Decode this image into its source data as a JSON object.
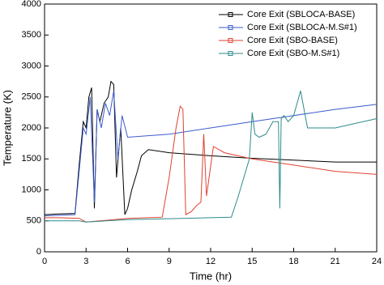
{
  "chart_data": {
    "type": "line",
    "x_label": "Time (hr)",
    "y_label": "Temperature (K)",
    "xlim": [
      0,
      24
    ],
    "xticks": [
      0,
      3,
      6,
      9,
      12,
      15,
      18,
      21,
      24
    ],
    "ylim": [
      0,
      4000
    ],
    "yticks": [
      0,
      500,
      1000,
      1500,
      2000,
      2500,
      3000,
      3500,
      4000
    ],
    "legend": "upper right",
    "series": [
      {
        "name": "Core Exit (SBLOCA-BASE)",
        "color": "#000000",
        "x": [
          0,
          1,
          2.2,
          2.5,
          2.8,
          3.0,
          3.2,
          3.4,
          3.6,
          3.8,
          4.0,
          4.3,
          4.6,
          4.8,
          5.0,
          5.2,
          5.5,
          5.8,
          6.0,
          6.3,
          6.7,
          7.0,
          7.5,
          9,
          12,
          15,
          18,
          21,
          24
        ],
        "values": [
          600,
          610,
          620,
          1400,
          2100,
          2000,
          2500,
          2650,
          700,
          2300,
          2100,
          2400,
          2500,
          2750,
          2700,
          1200,
          2000,
          600,
          700,
          1000,
          1300,
          1550,
          1650,
          1600,
          1550,
          1510,
          1480,
          1450,
          1450
        ]
      },
      {
        "name": "Core Exit (SBLOCA-M.S#1)",
        "color": "#3b5bcc",
        "x": [
          0,
          1,
          2.2,
          2.5,
          2.8,
          3.0,
          3.3,
          3.6,
          3.8,
          4.1,
          4.4,
          4.7,
          5.0,
          5.3,
          5.6,
          6.0,
          9,
          12,
          15,
          18,
          21,
          24
        ],
        "values": [
          580,
          590,
          600,
          1300,
          2000,
          1900,
          2500,
          800,
          2300,
          2000,
          2400,
          2200,
          2600,
          1500,
          2200,
          1850,
          1900,
          2000,
          2100,
          2200,
          2300,
          2380
        ]
      },
      {
        "name": "Core Exit (SBO-BASE)",
        "color": "#e04030",
        "x": [
          0,
          1,
          2.5,
          3,
          4,
          6,
          8.5,
          9.0,
          9.5,
          9.8,
          10.0,
          10.2,
          10.6,
          11.0,
          11.3,
          11.5,
          11.7,
          12.2,
          13,
          15,
          18,
          21,
          24
        ],
        "values": [
          550,
          550,
          540,
          480,
          500,
          540,
          560,
          1200,
          2000,
          2350,
          2300,
          600,
          650,
          750,
          800,
          1900,
          900,
          1700,
          1600,
          1500,
          1400,
          1300,
          1250
        ]
      },
      {
        "name": "Core Exit (SBO-M.S#1)",
        "color": "#2e8b8b",
        "x": [
          0,
          2.5,
          3,
          6,
          10,
          13.5,
          14.0,
          14.8,
          15.0,
          15.2,
          15.5,
          16.0,
          16.5,
          16.9,
          17.0,
          17.1,
          17.3,
          17.6,
          18.0,
          18.5,
          19.0,
          21,
          24
        ],
        "values": [
          500,
          500,
          480,
          520,
          540,
          560,
          900,
          1500,
          2250,
          1900,
          1850,
          1900,
          2100,
          2100,
          700,
          2150,
          2200,
          2100,
          2200,
          2600,
          2000,
          2000,
          2150
        ]
      }
    ]
  }
}
